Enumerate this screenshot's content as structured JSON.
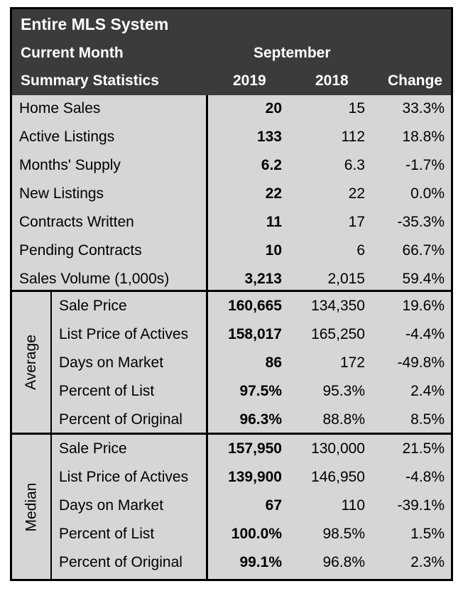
{
  "header": {
    "title": "Entire MLS System",
    "subtitle_period": "Current Month",
    "subtitle_stats": "Summary Statistics",
    "month": "September",
    "col_2019": "2019",
    "col_2018": "2018",
    "col_change": "Change"
  },
  "sections": {
    "average_label": "Average",
    "median_label": "Median"
  },
  "rows": [
    {
      "label": "Home Sales",
      "v2019": "20",
      "v2018": "15",
      "change": "33.3%"
    },
    {
      "label": "Active Listings",
      "v2019": "133",
      "v2018": "112",
      "change": "18.8%"
    },
    {
      "label": "Months' Supply",
      "v2019": "6.2",
      "v2018": "6.3",
      "change": "-1.7%"
    },
    {
      "label": "New Listings",
      "v2019": "22",
      "v2018": "22",
      "change": "0.0%"
    },
    {
      "label": "Contracts Written",
      "v2019": "11",
      "v2018": "17",
      "change": "-35.3%"
    },
    {
      "label": "Pending Contracts",
      "v2019": "10",
      "v2018": "6",
      "change": "66.7%"
    },
    {
      "label": "Sales Volume (1,000s)",
      "v2019": "3,213",
      "v2018": "2,015",
      "change": "59.4%"
    }
  ],
  "average": [
    {
      "label": "Sale Price",
      "v2019": "160,665",
      "v2018": "134,350",
      "change": "19.6%"
    },
    {
      "label": "List Price of Actives",
      "v2019": "158,017",
      "v2018": "165,250",
      "change": "-4.4%"
    },
    {
      "label": "Days on Market",
      "v2019": "86",
      "v2018": "172",
      "change": "-49.8%"
    },
    {
      "label": "Percent of List",
      "v2019": "97.5%",
      "v2018": "95.3%",
      "change": "2.4%"
    },
    {
      "label": "Percent of Original",
      "v2019": "96.3%",
      "v2018": "88.8%",
      "change": "8.5%"
    }
  ],
  "median": [
    {
      "label": "Sale Price",
      "v2019": "157,950",
      "v2018": "130,000",
      "change": "21.5%"
    },
    {
      "label": "List Price of Actives",
      "v2019": "139,900",
      "v2018": "146,950",
      "change": "-4.8%"
    },
    {
      "label": "Days on Market",
      "v2019": "67",
      "v2018": "110",
      "change": "-39.1%"
    },
    {
      "label": "Percent of List",
      "v2019": "100.0%",
      "v2018": "98.5%",
      "change": "1.5%"
    },
    {
      "label": "Percent of Original",
      "v2019": "99.1%",
      "v2018": "96.8%",
      "change": "2.3%"
    }
  ],
  "colors": {
    "header_bg": "#3b3b3b",
    "table_bg": "#d6d6d6",
    "border": "#000000"
  }
}
